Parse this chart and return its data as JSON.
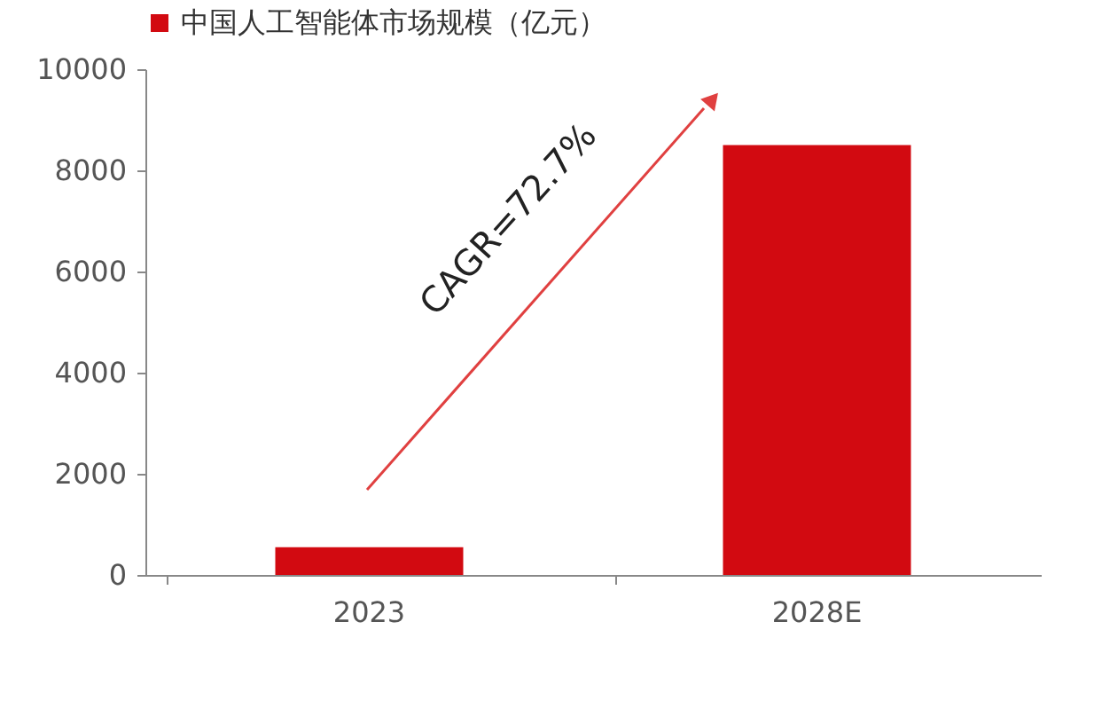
{
  "chart_data": {
    "type": "bar",
    "categories": [
      "2023",
      "2028E"
    ],
    "series": [
      {
        "name": "中国人工智能体市场规模（亿元）",
        "color": "#d20a11",
        "values": [
          550,
          8500
        ]
      }
    ],
    "ylim": [
      0,
      10000
    ],
    "yticks": [
      0,
      2000,
      4000,
      6000,
      8000,
      10000
    ],
    "grid": false,
    "legend": "top",
    "annotations": [
      "CAGR=72.7%"
    ]
  }
}
